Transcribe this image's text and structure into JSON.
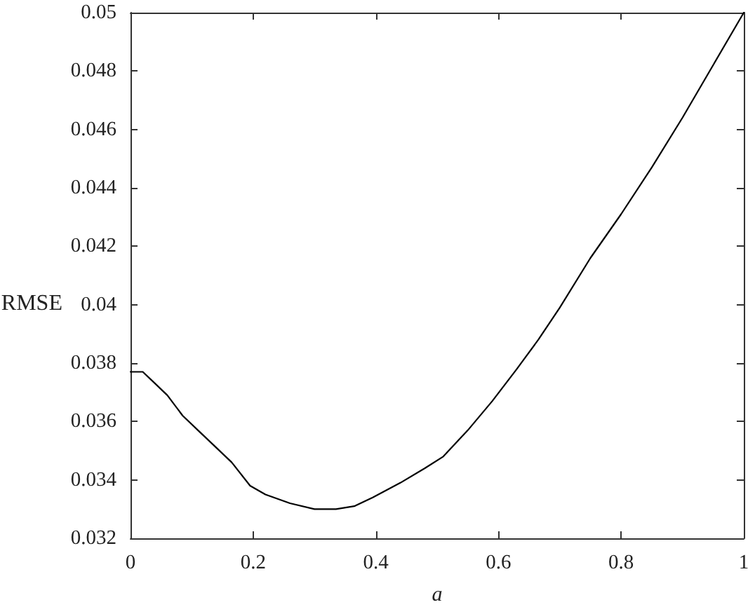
{
  "chart_data": {
    "type": "line",
    "xlabel": "a",
    "ylabel": "RMSE",
    "x": [
      0,
      0.02,
      0.04,
      0.06,
      0.085,
      0.11,
      0.135,
      0.165,
      0.195,
      0.22,
      0.26,
      0.3,
      0.335,
      0.365,
      0.395,
      0.44,
      0.48,
      0.51,
      0.55,
      0.59,
      0.63,
      0.665,
      0.7,
      0.75,
      0.8,
      0.85,
      0.9,
      0.95,
      1
    ],
    "series": [
      {
        "color": "#000000",
        "values": [
          0.0377,
          0.0377,
          0.0373,
          0.0369,
          0.0362,
          0.0357,
          0.0352,
          0.0346,
          0.0338,
          0.0335,
          0.0332,
          0.033,
          0.033,
          0.0331,
          0.0334,
          0.0339,
          0.0344,
          0.0348,
          0.0357,
          0.0367,
          0.0378,
          0.0388,
          0.0399,
          0.0416,
          0.0431,
          0.0447,
          0.0464,
          0.0482,
          0.05
        ]
      }
    ],
    "xlim": [
      0,
      1
    ],
    "xticks": [
      0,
      0.2,
      0.4,
      0.6,
      0.8,
      1
    ],
    "ylim": [
      0.032,
      0.05
    ],
    "yticks": [
      0.032,
      0.034,
      0.036,
      0.038,
      0.04,
      0.042,
      0.044,
      0.046,
      0.048,
      0.05
    ],
    "grid": false,
    "line_style": "solid"
  }
}
